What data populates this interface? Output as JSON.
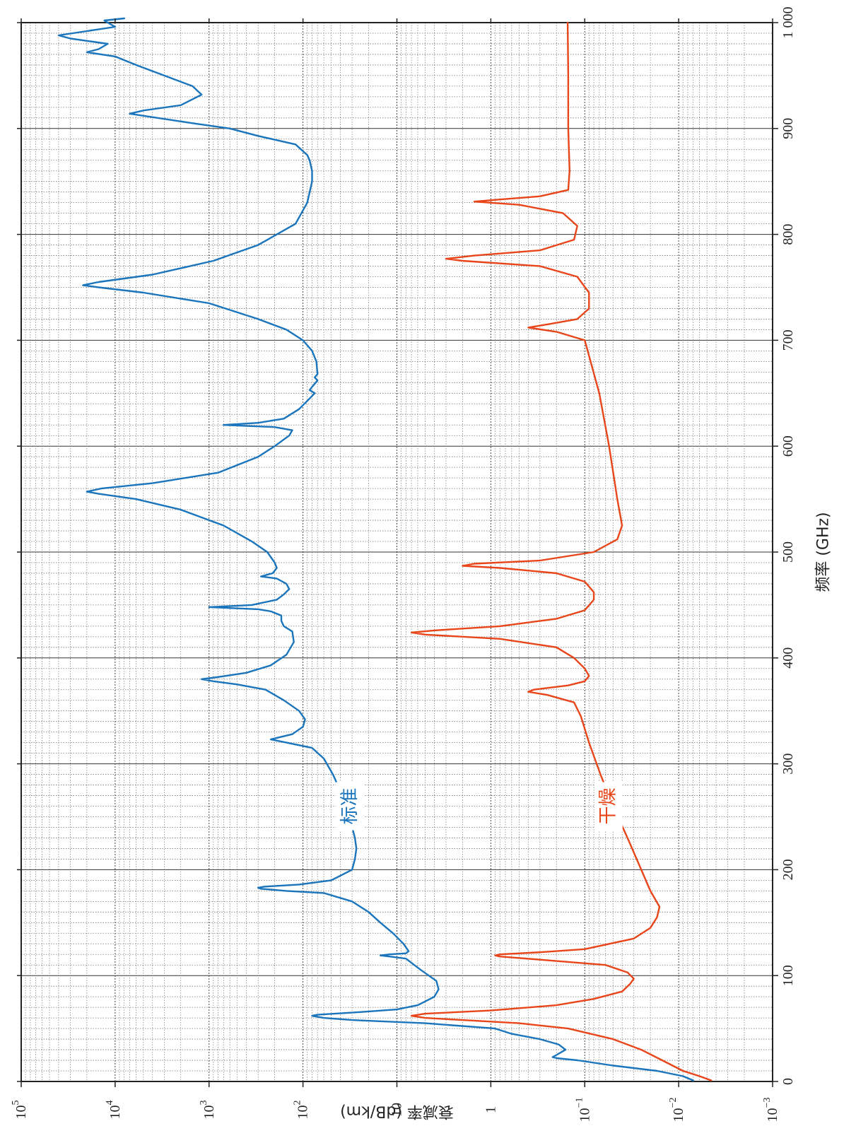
{
  "chart_data": {
    "type": "line",
    "orientation": "rotated-90-clockwise",
    "xlabel": "频率 (GHz)",
    "ylabel": "衰减率 (dB/km)",
    "xlim": [
      0,
      1000
    ],
    "x_ticks": [
      0,
      100,
      200,
      300,
      400,
      500,
      600,
      700,
      800,
      900,
      1000
    ],
    "x_tick_labels": [
      "0",
      "100",
      "200",
      "300",
      "400",
      "500",
      "600",
      "700",
      "800",
      "900",
      "1 000"
    ],
    "y_scale": "log",
    "ylim": [
      0.001,
      100000
    ],
    "y_ticks": [
      {
        "base": "10",
        "exp": "−3",
        "value": 0.001
      },
      {
        "base": "10",
        "exp": "−2",
        "value": 0.01
      },
      {
        "base": "10",
        "exp": "−1",
        "value": 0.1
      },
      {
        "base": "1",
        "exp": "",
        "value": 1
      },
      {
        "base": "10",
        "exp": "",
        "value": 10
      },
      {
        "base": "10",
        "exp": "2",
        "value": 100
      },
      {
        "base": "10",
        "exp": "3",
        "value": 1000
      },
      {
        "base": "10",
        "exp": "4",
        "value": 10000
      },
      {
        "base": "10",
        "exp": "5",
        "value": 100000
      }
    ],
    "grid": true,
    "series": [
      {
        "name": "标准",
        "color": "#1a75bc",
        "points": [
          [
            1,
            0.007
          ],
          [
            5,
            0.009
          ],
          [
            10,
            0.017
          ],
          [
            15,
            0.05
          ],
          [
            20,
            0.12
          ],
          [
            22,
            0.2
          ],
          [
            23,
            0.22
          ],
          [
            25,
            0.2
          ],
          [
            30,
            0.16
          ],
          [
            35,
            0.19
          ],
          [
            40,
            0.3
          ],
          [
            45,
            0.6
          ],
          [
            50,
            0.9
          ],
          [
            55,
            5
          ],
          [
            58,
            30
          ],
          [
            60,
            60
          ],
          [
            62,
            80
          ],
          [
            63,
            70
          ],
          [
            65,
            30
          ],
          [
            68,
            10
          ],
          [
            72,
            6
          ],
          [
            80,
            4
          ],
          [
            87,
            3.6
          ],
          [
            95,
            3.8
          ],
          [
            105,
            5.5
          ],
          [
            112,
            7
          ],
          [
            116,
            8
          ],
          [
            118,
            12
          ],
          [
            119,
            15
          ],
          [
            120,
            12
          ],
          [
            121,
            8
          ],
          [
            123,
            7.5
          ],
          [
            130,
            8.5
          ],
          [
            140,
            11
          ],
          [
            150,
            15
          ],
          [
            160,
            20
          ],
          [
            170,
            30
          ],
          [
            178,
            60
          ],
          [
            180,
            150
          ],
          [
            182,
            280
          ],
          [
            183,
            300
          ],
          [
            184,
            260
          ],
          [
            186,
            110
          ],
          [
            190,
            50
          ],
          [
            200,
            30
          ],
          [
            210,
            28
          ],
          [
            220,
            27
          ],
          [
            230,
            28
          ],
          [
            250,
            32
          ],
          [
            270,
            38
          ],
          [
            290,
            48
          ],
          [
            305,
            60
          ],
          [
            315,
            80
          ],
          [
            320,
            150
          ],
          [
            323,
            220
          ],
          [
            325,
            180
          ],
          [
            328,
            130
          ],
          [
            335,
            100
          ],
          [
            342,
            95
          ],
          [
            350,
            110
          ],
          [
            360,
            160
          ],
          [
            370,
            250
          ],
          [
            375,
            500
          ],
          [
            378,
            900
          ],
          [
            380,
            1200
          ],
          [
            382,
            800
          ],
          [
            386,
            400
          ],
          [
            393,
            220
          ],
          [
            403,
            150
          ],
          [
            415,
            125
          ],
          [
            425,
            130
          ],
          [
            430,
            160
          ],
          [
            435,
            170
          ],
          [
            440,
            170
          ],
          [
            444,
            220
          ],
          [
            446,
            300
          ],
          [
            448,
            1000
          ],
          [
            450,
            350
          ],
          [
            455,
            190
          ],
          [
            460,
            160
          ],
          [
            465,
            140
          ],
          [
            470,
            150
          ],
          [
            475,
            190
          ],
          [
            477,
            280
          ],
          [
            480,
            210
          ],
          [
            485,
            190
          ],
          [
            490,
            200
          ],
          [
            500,
            240
          ],
          [
            510,
            350
          ],
          [
            525,
            700
          ],
          [
            540,
            2000
          ],
          [
            550,
            6000
          ],
          [
            555,
            15000
          ],
          [
            557,
            20000
          ],
          [
            560,
            14000
          ],
          [
            565,
            4000
          ],
          [
            575,
            800
          ],
          [
            590,
            300
          ],
          [
            600,
            200
          ],
          [
            610,
            140
          ],
          [
            615,
            130
          ],
          [
            618,
            200
          ],
          [
            620,
            700
          ],
          [
            622,
            300
          ],
          [
            626,
            160
          ],
          [
            635,
            110
          ],
          [
            645,
            85
          ],
          [
            650,
            75
          ],
          [
            653,
            85
          ],
          [
            656,
            80
          ],
          [
            662,
            70
          ],
          [
            665,
            75
          ],
          [
            668,
            70
          ],
          [
            680,
            72
          ],
          [
            690,
            80
          ],
          [
            700,
            100
          ],
          [
            710,
            150
          ],
          [
            720,
            300
          ],
          [
            735,
            1000
          ],
          [
            745,
            5000
          ],
          [
            750,
            15000
          ],
          [
            752,
            22000
          ],
          [
            755,
            15000
          ],
          [
            762,
            4000
          ],
          [
            775,
            900
          ],
          [
            790,
            300
          ],
          [
            810,
            120
          ],
          [
            830,
            90
          ],
          [
            850,
            80
          ],
          [
            860,
            80
          ],
          [
            870,
            85
          ],
          [
            875,
            90
          ],
          [
            885,
            120
          ],
          [
            893,
            300
          ],
          [
            900,
            600
          ],
          [
            905,
            1500
          ],
          [
            912,
            5000
          ],
          [
            914,
            7000
          ],
          [
            917,
            5000
          ],
          [
            922,
            2000
          ],
          [
            932,
            1200
          ],
          [
            940,
            1500
          ],
          [
            950,
            3000
          ],
          [
            960,
            6000
          ],
          [
            968,
            10000
          ],
          [
            972,
            20000
          ],
          [
            975,
            15000
          ],
          [
            980,
            12000
          ],
          [
            985,
            30000
          ],
          [
            988,
            40000
          ],
          [
            992,
            20000
          ],
          [
            996,
            10000
          ],
          [
            1000,
            12000
          ],
          [
            1002,
            13000
          ],
          [
            1004,
            8000
          ]
        ]
      },
      {
        "name": "干燥",
        "color": "#e8461a",
        "points": [
          [
            1,
            0.0045
          ],
          [
            5,
            0.006
          ],
          [
            10,
            0.009
          ],
          [
            20,
            0.015
          ],
          [
            30,
            0.025
          ],
          [
            40,
            0.05
          ],
          [
            50,
            0.15
          ],
          [
            55,
            0.5
          ],
          [
            58,
            2
          ],
          [
            60,
            5
          ],
          [
            62,
            7
          ],
          [
            64,
            5
          ],
          [
            67,
            1
          ],
          [
            72,
            0.2
          ],
          [
            78,
            0.08
          ],
          [
            85,
            0.04
          ],
          [
            92,
            0.033
          ],
          [
            97,
            0.03
          ],
          [
            103,
            0.035
          ],
          [
            110,
            0.06
          ],
          [
            115,
            0.3
          ],
          [
            118,
            0.8
          ],
          [
            119,
            0.9
          ],
          [
            120,
            0.8
          ],
          [
            122,
            0.3
          ],
          [
            125,
            0.1
          ],
          [
            135,
            0.03
          ],
          [
            145,
            0.02
          ],
          [
            155,
            0.017
          ],
          [
            165,
            0.016
          ],
          [
            180,
            0.02
          ],
          [
            200,
            0.025
          ],
          [
            230,
            0.035
          ],
          [
            260,
            0.05
          ],
          [
            290,
            0.068
          ],
          [
            320,
            0.09
          ],
          [
            345,
            0.11
          ],
          [
            358,
            0.13
          ],
          [
            365,
            0.25
          ],
          [
            368,
            0.4
          ],
          [
            370,
            0.35
          ],
          [
            374,
            0.15
          ],
          [
            378,
            0.1
          ],
          [
            383,
            0.09
          ],
          [
            390,
            0.1
          ],
          [
            400,
            0.13
          ],
          [
            410,
            0.2
          ],
          [
            418,
            0.8
          ],
          [
            422,
            5
          ],
          [
            424,
            7
          ],
          [
            426,
            4
          ],
          [
            430,
            0.8
          ],
          [
            437,
            0.2
          ],
          [
            445,
            0.1
          ],
          [
            455,
            0.08
          ],
          [
            462,
            0.08
          ],
          [
            472,
            0.1
          ],
          [
            480,
            0.2
          ],
          [
            485,
            0.8
          ],
          [
            487,
            2
          ],
          [
            489,
            1.5
          ],
          [
            492,
            0.3
          ],
          [
            500,
            0.08
          ],
          [
            512,
            0.045
          ],
          [
            525,
            0.04
          ],
          [
            550,
            0.045
          ],
          [
            600,
            0.055
          ],
          [
            650,
            0.07
          ],
          [
            700,
            0.1
          ],
          [
            708,
            0.2
          ],
          [
            712,
            0.4
          ],
          [
            715,
            0.25
          ],
          [
            720,
            0.12
          ],
          [
            730,
            0.09
          ],
          [
            745,
            0.09
          ],
          [
            760,
            0.12
          ],
          [
            770,
            0.3
          ],
          [
            775,
            2
          ],
          [
            777,
            3
          ],
          [
            780,
            1.5
          ],
          [
            785,
            0.3
          ],
          [
            795,
            0.13
          ],
          [
            808,
            0.12
          ],
          [
            820,
            0.17
          ],
          [
            828,
            0.5
          ],
          [
            831,
            1.5
          ],
          [
            833,
            0.8
          ],
          [
            836,
            0.3
          ],
          [
            842,
            0.15
          ],
          [
            860,
            0.145
          ],
          [
            900,
            0.15
          ],
          [
            950,
            0.15
          ],
          [
            1000,
            0.152
          ]
        ]
      }
    ],
    "series_labels": [
      {
        "text": "标准",
        "x": 260,
        "y": 31.6
      },
      {
        "text": "干燥",
        "x": 260,
        "y": 0.056
      }
    ]
  }
}
